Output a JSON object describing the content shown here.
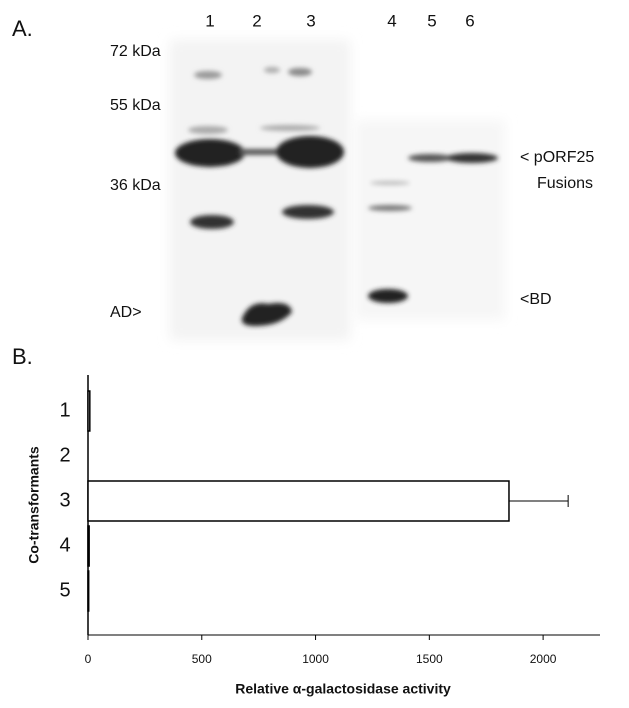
{
  "panel_a": {
    "label": "A.",
    "lanes": [
      "1",
      "2",
      "3",
      "4",
      "5",
      "6"
    ],
    "markers": [
      "72 kDa",
      "55 kDa",
      "36 kDa"
    ],
    "annotations": {
      "ad": "AD>",
      "porf25": "< pORF25",
      "fusions": "Fusions",
      "bd": "<BD"
    }
  },
  "chart_data": {
    "type": "barh",
    "panel_label": "B.",
    "categories": [
      "1",
      "2",
      "3",
      "4",
      "5"
    ],
    "values": [
      8,
      0,
      1850,
      5,
      3
    ],
    "errors": [
      null,
      null,
      260,
      null,
      null
    ],
    "color": "#ffffff",
    "xlim": [
      0,
      2250
    ],
    "xticks": [
      0,
      500,
      1000,
      1500,
      2000
    ],
    "xlabel": "Relative α-galactosidase activity",
    "ylabel": "Co-transformants"
  }
}
